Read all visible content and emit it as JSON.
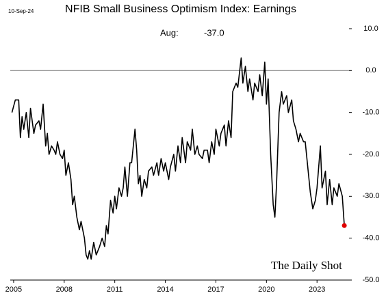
{
  "chart_data": {
    "type": "line",
    "title": "NFIB Small Business Optimism Index: Earnings",
    "date": "10-Sep-24",
    "annotation": {
      "label": "Aug:",
      "value_label": "-37.0"
    },
    "source": "The Daily Shot",
    "x": [
      2004.9,
      2005.1,
      2005.3,
      2005.4,
      2005.5,
      2005.6,
      2005.75,
      2005.9,
      2006.0,
      2006.2,
      2006.3,
      2006.5,
      2006.6,
      2006.75,
      2006.9,
      2007.0,
      2007.1,
      2007.25,
      2007.4,
      2007.5,
      2007.6,
      2007.75,
      2007.9,
      2008.0,
      2008.1,
      2008.25,
      2008.4,
      2008.5,
      2008.6,
      2008.75,
      2008.9,
      2009.0,
      2009.2,
      2009.3,
      2009.4,
      2009.5,
      2009.6,
      2009.75,
      2009.9,
      2010.1,
      2010.25,
      2010.4,
      2010.5,
      2010.6,
      2010.75,
      2010.9,
      2011.0,
      2011.1,
      2011.25,
      2011.4,
      2011.5,
      2011.6,
      2011.75,
      2011.9,
      2012.0,
      2012.2,
      2012.3,
      2012.4,
      2012.5,
      2012.6,
      2012.75,
      2012.9,
      2013.0,
      2013.2,
      2013.3,
      2013.5,
      2013.6,
      2013.75,
      2013.9,
      2014.0,
      2014.2,
      2014.3,
      2014.5,
      2014.6,
      2014.75,
      2014.9,
      2015.0,
      2015.2,
      2015.3,
      2015.5,
      2015.6,
      2015.75,
      2015.9,
      2016.0,
      2016.2,
      2016.3,
      2016.5,
      2016.6,
      2016.75,
      2016.9,
      2017.0,
      2017.2,
      2017.3,
      2017.5,
      2017.6,
      2017.75,
      2017.9,
      2018.0,
      2018.2,
      2018.3,
      2018.5,
      2018.6,
      2018.75,
      2018.9,
      2019.0,
      2019.2,
      2019.3,
      2019.5,
      2019.6,
      2019.75,
      2019.9,
      2020.0,
      2020.1,
      2020.25,
      2020.4,
      2020.5,
      2020.6,
      2020.75,
      2020.9,
      2021.0,
      2021.2,
      2021.3,
      2021.5,
      2021.6,
      2021.75,
      2021.9,
      2022.0,
      2022.2,
      2022.3,
      2022.5,
      2022.6,
      2022.75,
      2022.9,
      2023.0,
      2023.2,
      2023.3,
      2023.5,
      2023.6,
      2023.75,
      2023.9,
      2024.0,
      2024.2,
      2024.3,
      2024.5,
      2024.62
    ],
    "series": [
      {
        "name": "Earnings",
        "color": "#000000",
        "last_point_color": "#e00000",
        "values": [
          -10,
          -7,
          -7,
          -16,
          -11,
          -14,
          -10,
          -16,
          -9,
          -15,
          -13,
          -12,
          -14,
          -8,
          -18,
          -15,
          -20,
          -18,
          -19,
          -20,
          -17,
          -20,
          -21,
          -19,
          -25,
          -22,
          -26,
          -32,
          -30,
          -35,
          -38,
          -36,
          -40,
          -44,
          -45,
          -43,
          -45,
          -41,
          -44,
          -42,
          -40,
          -42,
          -37,
          -39,
          -31,
          -34,
          -30,
          -33,
          -28,
          -30,
          -28,
          -23,
          -30,
          -22,
          -22,
          -14,
          -19,
          -27,
          -25,
          -30,
          -26,
          -28,
          -24,
          -23,
          -25,
          -22,
          -25,
          -21,
          -24,
          -22,
          -26,
          -23,
          -20,
          -24,
          -18,
          -22,
          -16,
          -22,
          -17,
          -19,
          -14,
          -20,
          -18,
          -20,
          -21,
          -19,
          -19,
          -22,
          -17,
          -20,
          -14,
          -18,
          -15,
          -13,
          -18,
          -12,
          -16,
          -5,
          -3,
          -4,
          3,
          -3,
          1,
          -5,
          -2,
          -7,
          -3,
          -5,
          -1,
          -6,
          2,
          -8,
          -2,
          -20,
          -32,
          -35,
          -27,
          -10,
          -5,
          -8,
          -6,
          -10,
          -7,
          -12,
          -14,
          -17,
          -15,
          -17,
          -17,
          -25,
          -29,
          -33,
          -31,
          -28,
          -18,
          -28,
          -24,
          -32,
          -26,
          -32,
          -28,
          -30,
          -27,
          -30,
          -37
        ]
      }
    ],
    "reference_line": 0,
    "xlim": [
      2004.8,
      2024.9
    ],
    "xticks": [
      2005,
      2008,
      2011,
      2014,
      2017,
      2020,
      2023
    ],
    "ylim": [
      -50,
      10
    ],
    "yticks": [
      {
        "value": 10,
        "label": "10.0"
      },
      {
        "value": 0,
        "label": "0.0"
      },
      {
        "value": -10,
        "label": "-10.0"
      },
      {
        "value": -20,
        "label": "-20.0"
      },
      {
        "value": -30,
        "label": "-30.0"
      },
      {
        "value": -40,
        "label": "-40.0"
      },
      {
        "value": -50,
        "label": "-50.0"
      }
    ]
  }
}
